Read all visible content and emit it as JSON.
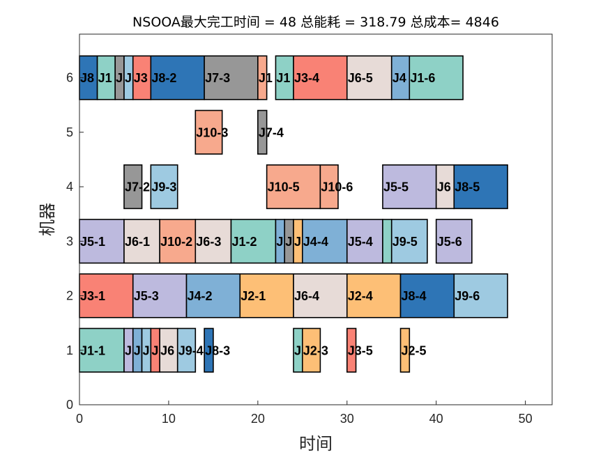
{
  "chart_data": {
    "type": "gantt",
    "title": "NSOOA最大完工时间 = 48 总能耗 = 318.79 总成本= 4846",
    "xlabel": "时间",
    "ylabel": "机器",
    "xlim": [
      0,
      53
    ],
    "ylim": [
      0,
      6.8
    ],
    "xticks": [
      0,
      10,
      20,
      30,
      40,
      50
    ],
    "yticks": [
      0,
      1,
      2,
      3,
      4,
      5,
      6
    ],
    "job_colors": {
      "J1": "#8ed1c6",
      "J2": "#fdbf76",
      "J3": "#f98275",
      "J4": "#7fb0d6",
      "J5": "#bdbade",
      "J6": "#e7dbd7",
      "J7": "#979797",
      "J8": "#2e75b6",
      "J9": "#9ecae1",
      "J10": "#f7a98d"
    },
    "tasks": [
      {
        "machine": 6,
        "job": "J8",
        "label": "J8",
        "start": 0,
        "end": 2
      },
      {
        "machine": 6,
        "job": "J1",
        "label": "J1",
        "start": 2,
        "end": 4
      },
      {
        "machine": 6,
        "job": "J7",
        "label": "J",
        "start": 4,
        "end": 5
      },
      {
        "machine": 6,
        "job": "J9",
        "label": "J",
        "start": 5,
        "end": 6
      },
      {
        "machine": 6,
        "job": "J3",
        "label": "J3",
        "start": 6,
        "end": 8
      },
      {
        "machine": 6,
        "job": "J8",
        "label": "J8-2",
        "start": 8,
        "end": 14
      },
      {
        "machine": 6,
        "job": "J7",
        "label": "J7-3",
        "start": 14,
        "end": 20
      },
      {
        "machine": 6,
        "job": "J10",
        "label": "J1",
        "start": 20,
        "end": 21
      },
      {
        "machine": 6,
        "job": "J1",
        "label": "J1",
        "start": 22,
        "end": 24
      },
      {
        "machine": 6,
        "job": "J3",
        "label": "J3-4",
        "start": 24,
        "end": 30
      },
      {
        "machine": 6,
        "job": "J6",
        "label": "J6-5",
        "start": 30,
        "end": 35
      },
      {
        "machine": 6,
        "job": "J4",
        "label": "J4",
        "start": 35,
        "end": 37
      },
      {
        "machine": 6,
        "job": "J1",
        "label": "J1-6",
        "start": 37,
        "end": 43
      },
      {
        "machine": 5,
        "job": "J10",
        "label": "J10-3",
        "start": 13,
        "end": 16
      },
      {
        "machine": 5,
        "job": "J7",
        "label": "J7-4",
        "start": 20,
        "end": 21
      },
      {
        "machine": 4,
        "job": "J7",
        "label": "J7-2",
        "start": 5,
        "end": 7
      },
      {
        "machine": 4,
        "job": "J9",
        "label": "J9-3",
        "start": 8,
        "end": 11
      },
      {
        "machine": 4,
        "job": "J10",
        "label": "J10-5",
        "start": 21,
        "end": 27
      },
      {
        "machine": 4,
        "job": "J10",
        "label": "J10-6",
        "start": 27,
        "end": 29
      },
      {
        "machine": 4,
        "job": "J5",
        "label": "J5-5",
        "start": 34,
        "end": 40
      },
      {
        "machine": 4,
        "job": "J6",
        "label": "J6",
        "start": 40,
        "end": 42
      },
      {
        "machine": 4,
        "job": "J8",
        "label": "J8-5",
        "start": 42,
        "end": 48
      },
      {
        "machine": 3,
        "job": "J5",
        "label": "J5-1",
        "start": 0,
        "end": 5
      },
      {
        "machine": 3,
        "job": "J6",
        "label": "J6-1",
        "start": 5,
        "end": 9
      },
      {
        "machine": 3,
        "job": "J10",
        "label": "J10-2",
        "start": 9,
        "end": 13
      },
      {
        "machine": 3,
        "job": "J6",
        "label": "J6-3",
        "start": 13,
        "end": 17
      },
      {
        "machine": 3,
        "job": "J1",
        "label": "J1-2",
        "start": 17,
        "end": 22
      },
      {
        "machine": 3,
        "job": "J4",
        "label": "J",
        "start": 22,
        "end": 23
      },
      {
        "machine": 3,
        "job": "J7",
        "label": "J",
        "start": 23,
        "end": 24
      },
      {
        "machine": 3,
        "job": "J2",
        "label": "J",
        "start": 24,
        "end": 25
      },
      {
        "machine": 3,
        "job": "J4",
        "label": "J4-4",
        "start": 25,
        "end": 30
      },
      {
        "machine": 3,
        "job": "J5",
        "label": "J5-4",
        "start": 30,
        "end": 34
      },
      {
        "machine": 3,
        "job": "J1",
        "label": "",
        "start": 34,
        "end": 35
      },
      {
        "machine": 3,
        "job": "J9",
        "label": "J9-5",
        "start": 35,
        "end": 39
      },
      {
        "machine": 3,
        "job": "J5",
        "label": "J5-6",
        "start": 40,
        "end": 44
      },
      {
        "machine": 2,
        "job": "J3",
        "label": "J3-1",
        "start": 0,
        "end": 6
      },
      {
        "machine": 2,
        "job": "J5",
        "label": "J5-3",
        "start": 6,
        "end": 12
      },
      {
        "machine": 2,
        "job": "J4",
        "label": "J4-2",
        "start": 12,
        "end": 18
      },
      {
        "machine": 2,
        "job": "J2",
        "label": "J2-1",
        "start": 18,
        "end": 24
      },
      {
        "machine": 2,
        "job": "J6",
        "label": "J6-4",
        "start": 24,
        "end": 30
      },
      {
        "machine": 2,
        "job": "J2",
        "label": "J2-4",
        "start": 30,
        "end": 36
      },
      {
        "machine": 2,
        "job": "J8",
        "label": "J8-4",
        "start": 36,
        "end": 42
      },
      {
        "machine": 2,
        "job": "J9",
        "label": "J9-6",
        "start": 42,
        "end": 48
      },
      {
        "machine": 1,
        "job": "J1",
        "label": "J1-1",
        "start": 0,
        "end": 5
      },
      {
        "machine": 1,
        "job": "J5",
        "label": "J",
        "start": 5,
        "end": 6
      },
      {
        "machine": 1,
        "job": "J4",
        "label": "J",
        "start": 6,
        "end": 7
      },
      {
        "machine": 1,
        "job": "J9",
        "label": "J",
        "start": 7,
        "end": 8
      },
      {
        "machine": 1,
        "job": "J3",
        "label": "J",
        "start": 8,
        "end": 9
      },
      {
        "machine": 1,
        "job": "J6",
        "label": "J6",
        "start": 9,
        "end": 11
      },
      {
        "machine": 1,
        "job": "J9",
        "label": "J9-4",
        "start": 11,
        "end": 13
      },
      {
        "machine": 1,
        "job": "J8",
        "label": "J8-3",
        "start": 14,
        "end": 15
      },
      {
        "machine": 1,
        "job": "J1",
        "label": "J",
        "start": 24,
        "end": 25
      },
      {
        "machine": 1,
        "job": "J2",
        "label": "J2-3",
        "start": 25,
        "end": 27
      },
      {
        "machine": 1,
        "job": "J3",
        "label": "J3-5",
        "start": 30,
        "end": 31
      },
      {
        "machine": 1,
        "job": "J2",
        "label": "J2-5",
        "start": 36,
        "end": 37
      }
    ]
  }
}
